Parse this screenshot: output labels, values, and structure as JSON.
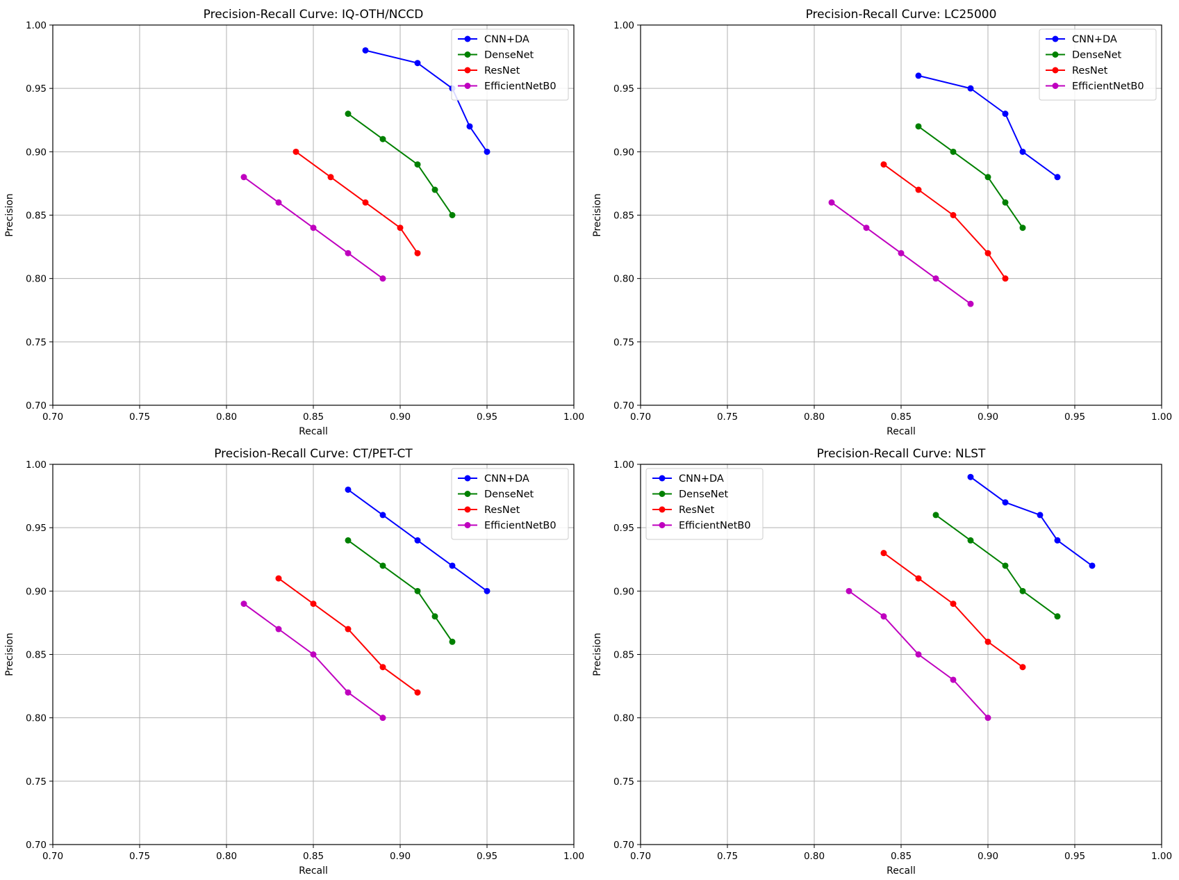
{
  "chart_data": [
    {
      "type": "line",
      "title": "Precision-Recall Curve: IQ-OTH/NCCD",
      "xlabel": "Recall",
      "ylabel": "Precision",
      "xlim": [
        0.7,
        1.0
      ],
      "ylim": [
        0.7,
        1.0
      ],
      "xticks": [
        "0.70",
        "0.75",
        "0.80",
        "0.85",
        "0.90",
        "0.95",
        "1.00"
      ],
      "yticks": [
        "0.70",
        "0.75",
        "0.80",
        "0.85",
        "0.90",
        "0.95",
        "1.00"
      ],
      "grid": true,
      "legend_position": "top-right",
      "series": [
        {
          "name": "CNN+DA",
          "color": "#0000ff",
          "x": [
            0.88,
            0.91,
            0.93,
            0.94,
            0.95
          ],
          "y": [
            0.98,
            0.97,
            0.95,
            0.92,
            0.9
          ]
        },
        {
          "name": "DenseNet",
          "color": "#008000",
          "x": [
            0.87,
            0.89,
            0.91,
            0.92,
            0.93
          ],
          "y": [
            0.93,
            0.91,
            0.89,
            0.87,
            0.85
          ]
        },
        {
          "name": "ResNet",
          "color": "#ff0000",
          "x": [
            0.84,
            0.86,
            0.88,
            0.9,
            0.91
          ],
          "y": [
            0.9,
            0.88,
            0.86,
            0.84,
            0.82
          ]
        },
        {
          "name": "EfficientNetB0",
          "color": "#bf00bf",
          "x": [
            0.81,
            0.83,
            0.85,
            0.87,
            0.89
          ],
          "y": [
            0.88,
            0.86,
            0.84,
            0.82,
            0.8
          ]
        }
      ]
    },
    {
      "type": "line",
      "title": "Precision-Recall Curve: LC25000",
      "xlabel": "Recall",
      "ylabel": "Precision",
      "xlim": [
        0.7,
        1.0
      ],
      "ylim": [
        0.7,
        1.0
      ],
      "xticks": [
        "0.70",
        "0.75",
        "0.80",
        "0.85",
        "0.90",
        "0.95",
        "1.00"
      ],
      "yticks": [
        "0.70",
        "0.75",
        "0.80",
        "0.85",
        "0.90",
        "0.95",
        "1.00"
      ],
      "grid": true,
      "legend_position": "top-right",
      "series": [
        {
          "name": "CNN+DA",
          "color": "#0000ff",
          "x": [
            0.86,
            0.89,
            0.91,
            0.92,
            0.94
          ],
          "y": [
            0.96,
            0.95,
            0.93,
            0.9,
            0.88
          ]
        },
        {
          "name": "DenseNet",
          "color": "#008000",
          "x": [
            0.86,
            0.88,
            0.9,
            0.91,
            0.92
          ],
          "y": [
            0.92,
            0.9,
            0.88,
            0.86,
            0.84
          ]
        },
        {
          "name": "ResNet",
          "color": "#ff0000",
          "x": [
            0.84,
            0.86,
            0.88,
            0.9,
            0.91
          ],
          "y": [
            0.89,
            0.87,
            0.85,
            0.82,
            0.8
          ]
        },
        {
          "name": "EfficientNetB0",
          "color": "#bf00bf",
          "x": [
            0.81,
            0.83,
            0.85,
            0.87,
            0.89
          ],
          "y": [
            0.86,
            0.84,
            0.82,
            0.8,
            0.78
          ]
        }
      ]
    },
    {
      "type": "line",
      "title": "Precision-Recall Curve: CT/PET-CT",
      "xlabel": "Recall",
      "ylabel": "Precision",
      "xlim": [
        0.7,
        1.0
      ],
      "ylim": [
        0.7,
        1.0
      ],
      "xticks": [
        "0.70",
        "0.75",
        "0.80",
        "0.85",
        "0.90",
        "0.95",
        "1.00"
      ],
      "yticks": [
        "0.70",
        "0.75",
        "0.80",
        "0.85",
        "0.90",
        "0.95",
        "1.00"
      ],
      "grid": true,
      "legend_position": "top-right",
      "series": [
        {
          "name": "CNN+DA",
          "color": "#0000ff",
          "x": [
            0.87,
            0.89,
            0.91,
            0.93,
            0.95
          ],
          "y": [
            0.98,
            0.96,
            0.94,
            0.92,
            0.9
          ]
        },
        {
          "name": "DenseNet",
          "color": "#008000",
          "x": [
            0.87,
            0.89,
            0.91,
            0.92,
            0.93
          ],
          "y": [
            0.94,
            0.92,
            0.9,
            0.88,
            0.86
          ]
        },
        {
          "name": "ResNet",
          "color": "#ff0000",
          "x": [
            0.83,
            0.85,
            0.87,
            0.89,
            0.91
          ],
          "y": [
            0.91,
            0.89,
            0.87,
            0.84,
            0.82
          ]
        },
        {
          "name": "EfficientNetB0",
          "color": "#bf00bf",
          "x": [
            0.81,
            0.83,
            0.85,
            0.87,
            0.89
          ],
          "y": [
            0.89,
            0.87,
            0.85,
            0.82,
            0.8
          ]
        }
      ]
    },
    {
      "type": "line",
      "title": "Precision-Recall Curve: NLST",
      "xlabel": "Recall",
      "ylabel": "Precision",
      "xlim": [
        0.7,
        1.0
      ],
      "ylim": [
        0.7,
        1.0
      ],
      "xticks": [
        "0.70",
        "0.75",
        "0.80",
        "0.85",
        "0.90",
        "0.95",
        "1.00"
      ],
      "yticks": [
        "0.70",
        "0.75",
        "0.80",
        "0.85",
        "0.90",
        "0.95",
        "1.00"
      ],
      "grid": true,
      "legend_position": "top-left",
      "series": [
        {
          "name": "CNN+DA",
          "color": "#0000ff",
          "x": [
            0.89,
            0.91,
            0.93,
            0.94,
            0.96
          ],
          "y": [
            0.99,
            0.97,
            0.96,
            0.94,
            0.92
          ]
        },
        {
          "name": "DenseNet",
          "color": "#008000",
          "x": [
            0.87,
            0.89,
            0.91,
            0.92,
            0.94
          ],
          "y": [
            0.96,
            0.94,
            0.92,
            0.9,
            0.88
          ]
        },
        {
          "name": "ResNet",
          "color": "#ff0000",
          "x": [
            0.84,
            0.86,
            0.88,
            0.9,
            0.92
          ],
          "y": [
            0.93,
            0.91,
            0.89,
            0.86,
            0.84
          ]
        },
        {
          "name": "EfficientNetB0",
          "color": "#bf00bf",
          "x": [
            0.82,
            0.84,
            0.86,
            0.88,
            0.9
          ],
          "y": [
            0.9,
            0.88,
            0.85,
            0.83,
            0.8
          ]
        }
      ]
    }
  ]
}
